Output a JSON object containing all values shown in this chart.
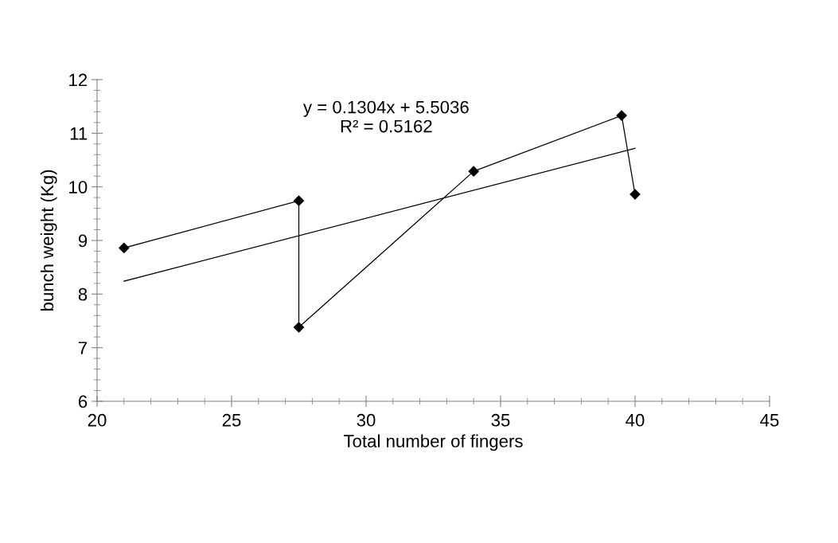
{
  "chart_data": {
    "type": "line",
    "xlabel": "Total number of fingers",
    "ylabel": "bunch weight (Kg)",
    "series": [
      {
        "color": "#000000",
        "marker": "diamond",
        "x": [
          21,
          27.5,
          27.5,
          34,
          39.5,
          40
        ],
        "values": [
          8.86,
          9.74,
          7.38,
          10.29,
          11.33,
          9.86
        ]
      },
      {
        "type": "line",
        "color": "#000000",
        "marker": "none",
        "x": [
          21,
          40
        ],
        "values": [
          8.24,
          10.72
        ]
      }
    ],
    "annotations": [
      "y = 0.1304x + 5.5036\nR² = 0.5162"
    ],
    "xlim": [
      20,
      45
    ],
    "xticks": [
      20,
      25,
      30,
      35,
      40,
      45
    ],
    "ylim": [
      6,
      12
    ],
    "yticks": [
      6,
      7,
      8,
      9,
      10,
      11,
      12
    ],
    "grid": false,
    "legend": false,
    "line_style": "solid"
  }
}
